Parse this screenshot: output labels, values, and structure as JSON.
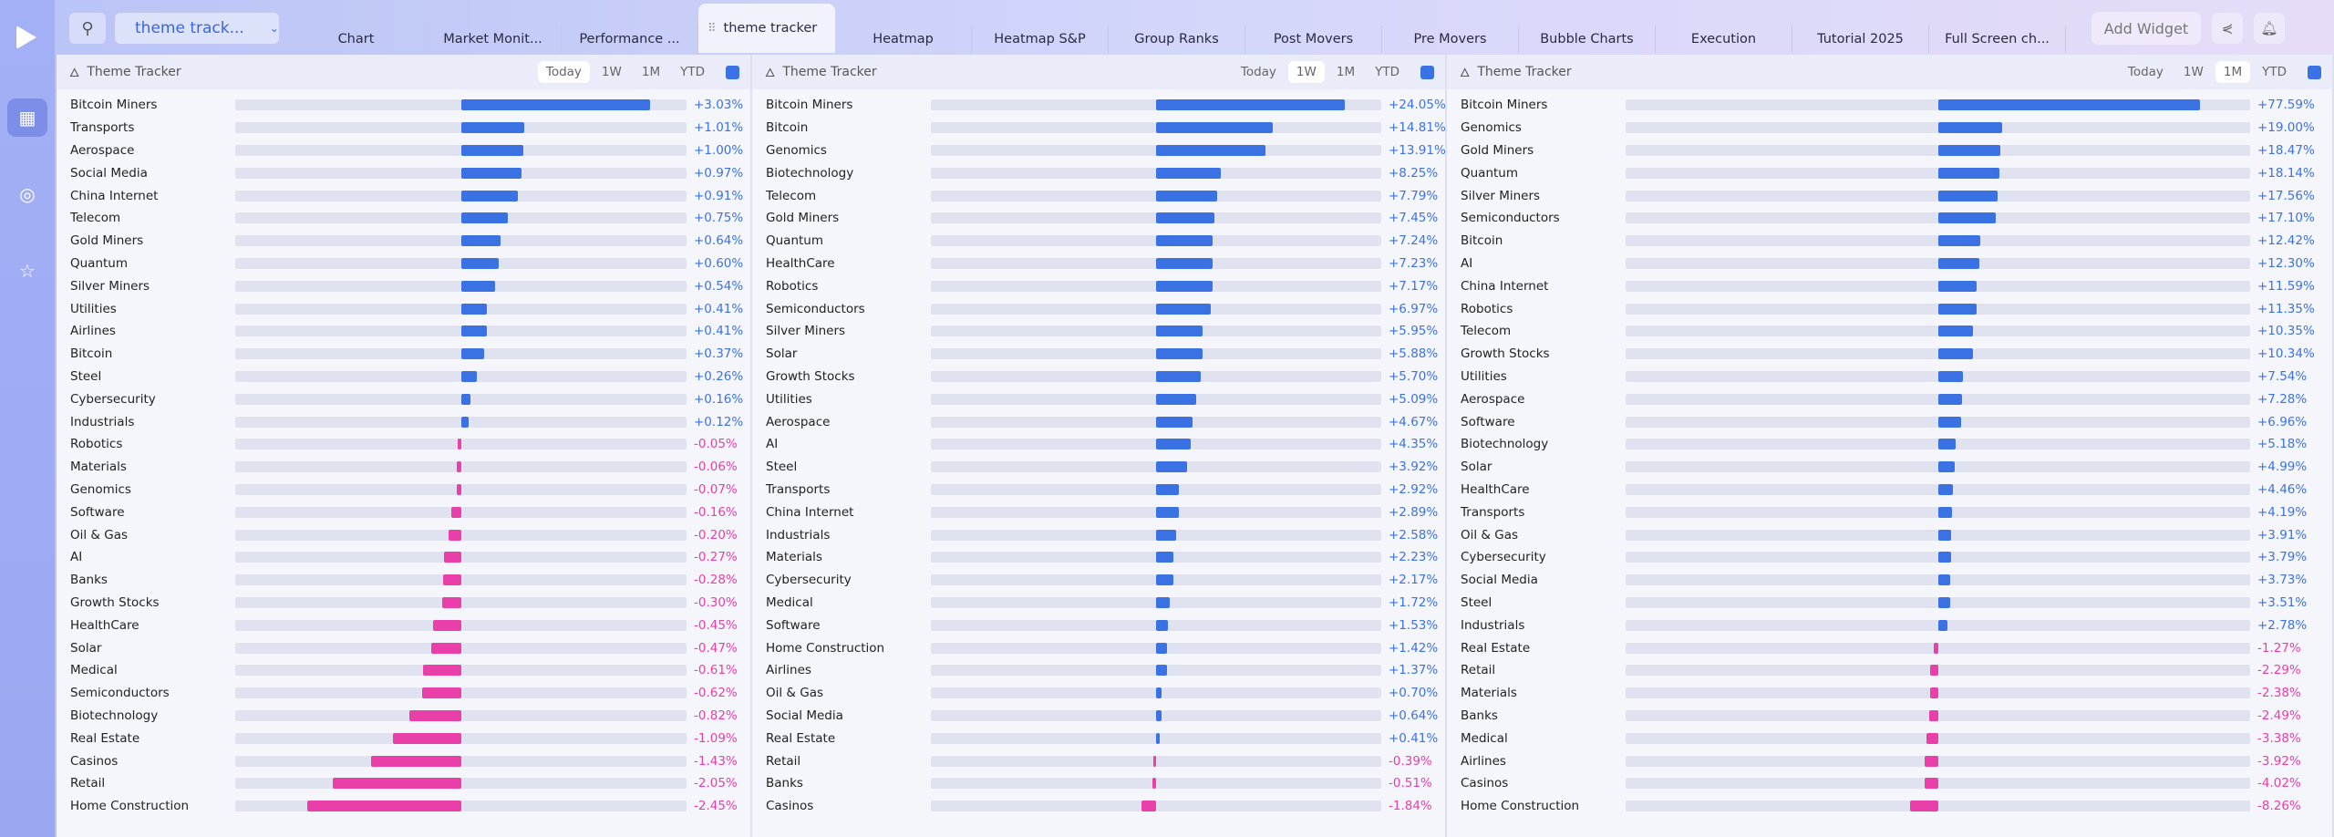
{
  "colors": {
    "positive": "#3b72e3",
    "negative": "#e83fa8"
  },
  "topbar": {
    "dropdown": "theme track...",
    "tabs": [
      "Chart",
      "Market Monit...",
      "Performance ...",
      "theme tracker",
      "Heatmap",
      "Heatmap S&P",
      "Group Ranks",
      "Post Movers",
      "Pre Movers",
      "Bubble Charts",
      "Execution",
      "Tutorial 2025",
      "Full Screen ch..."
    ],
    "active_tab": 3,
    "add_widget": "Add Widget"
  },
  "periods": [
    "Today",
    "1W",
    "1M",
    "YTD"
  ],
  "panels": [
    {
      "title": "Theme Tracker",
      "selected_period": "Today",
      "rows": [
        [
          "Bitcoin Miners",
          3.03
        ],
        [
          "Transports",
          1.01
        ],
        [
          "Aerospace",
          1.0
        ],
        [
          "Social Media",
          0.97
        ],
        [
          "China Internet",
          0.91
        ],
        [
          "Telecom",
          0.75
        ],
        [
          "Gold Miners",
          0.64
        ],
        [
          "Quantum",
          0.6
        ],
        [
          "Silver Miners",
          0.54
        ],
        [
          "Utilities",
          0.41
        ],
        [
          "Airlines",
          0.41
        ],
        [
          "Bitcoin",
          0.37
        ],
        [
          "Steel",
          0.26
        ],
        [
          "Cybersecurity",
          0.16
        ],
        [
          "Industrials",
          0.12
        ],
        [
          "Robotics",
          -0.05
        ],
        [
          "Materials",
          -0.06
        ],
        [
          "Genomics",
          -0.07
        ],
        [
          "Software",
          -0.16
        ],
        [
          "Oil & Gas",
          -0.2
        ],
        [
          "AI",
          -0.27
        ],
        [
          "Banks",
          -0.28
        ],
        [
          "Growth Stocks",
          -0.3
        ],
        [
          "HealthCare",
          -0.45
        ],
        [
          "Solar",
          -0.47
        ],
        [
          "Medical",
          -0.61
        ],
        [
          "Semiconductors",
          -0.62
        ],
        [
          "Biotechnology",
          -0.82
        ],
        [
          "Real Estate",
          -1.09
        ],
        [
          "Casinos",
          -1.43
        ],
        [
          "Retail",
          -2.05
        ],
        [
          "Home Construction",
          -2.45
        ]
      ]
    },
    {
      "title": "Theme Tracker",
      "selected_period": "1W",
      "rows": [
        [
          "Bitcoin Miners",
          24.05
        ],
        [
          "Bitcoin",
          14.81
        ],
        [
          "Genomics",
          13.91
        ],
        [
          "Biotechnology",
          8.25
        ],
        [
          "Telecom",
          7.79
        ],
        [
          "Gold Miners",
          7.45
        ],
        [
          "Quantum",
          7.24
        ],
        [
          "HealthCare",
          7.23
        ],
        [
          "Robotics",
          7.17
        ],
        [
          "Semiconductors",
          6.97
        ],
        [
          "Silver Miners",
          5.95
        ],
        [
          "Solar",
          5.88
        ],
        [
          "Growth Stocks",
          5.7
        ],
        [
          "Utilities",
          5.09
        ],
        [
          "Aerospace",
          4.67
        ],
        [
          "AI",
          4.35
        ],
        [
          "Steel",
          3.92
        ],
        [
          "Transports",
          2.92
        ],
        [
          "China Internet",
          2.89
        ],
        [
          "Industrials",
          2.58
        ],
        [
          "Materials",
          2.23
        ],
        [
          "Cybersecurity",
          2.17
        ],
        [
          "Medical",
          1.72
        ],
        [
          "Software",
          1.53
        ],
        [
          "Home Construction",
          1.42
        ],
        [
          "Airlines",
          1.37
        ],
        [
          "Oil & Gas",
          0.7
        ],
        [
          "Social Media",
          0.64
        ],
        [
          "Real Estate",
          0.41
        ],
        [
          "Retail",
          -0.39
        ],
        [
          "Banks",
          -0.51
        ],
        [
          "Casinos",
          -1.84
        ]
      ]
    },
    {
      "title": "Theme Tracker",
      "selected_period": "1M",
      "rows": [
        [
          "Bitcoin Miners",
          77.59
        ],
        [
          "Genomics",
          19.0
        ],
        [
          "Gold Miners",
          18.47
        ],
        [
          "Quantum",
          18.14
        ],
        [
          "Silver Miners",
          17.56
        ],
        [
          "Semiconductors",
          17.1
        ],
        [
          "Bitcoin",
          12.42
        ],
        [
          "AI",
          12.3
        ],
        [
          "China Internet",
          11.59
        ],
        [
          "Robotics",
          11.35
        ],
        [
          "Telecom",
          10.35
        ],
        [
          "Growth Stocks",
          10.34
        ],
        [
          "Utilities",
          7.54
        ],
        [
          "Aerospace",
          7.28
        ],
        [
          "Software",
          6.96
        ],
        [
          "Biotechnology",
          5.18
        ],
        [
          "Solar",
          4.99
        ],
        [
          "HealthCare",
          4.46
        ],
        [
          "Transports",
          4.19
        ],
        [
          "Oil & Gas",
          3.91
        ],
        [
          "Cybersecurity",
          3.79
        ],
        [
          "Social Media",
          3.73
        ],
        [
          "Steel",
          3.51
        ],
        [
          "Industrials",
          2.78
        ],
        [
          "Real Estate",
          -1.27
        ],
        [
          "Retail",
          -2.29
        ],
        [
          "Materials",
          -2.38
        ],
        [
          "Banks",
          -2.49
        ],
        [
          "Medical",
          -3.38
        ],
        [
          "Airlines",
          -3.92
        ],
        [
          "Casinos",
          -4.02
        ],
        [
          "Home Construction",
          -8.26
        ]
      ]
    }
  ]
}
